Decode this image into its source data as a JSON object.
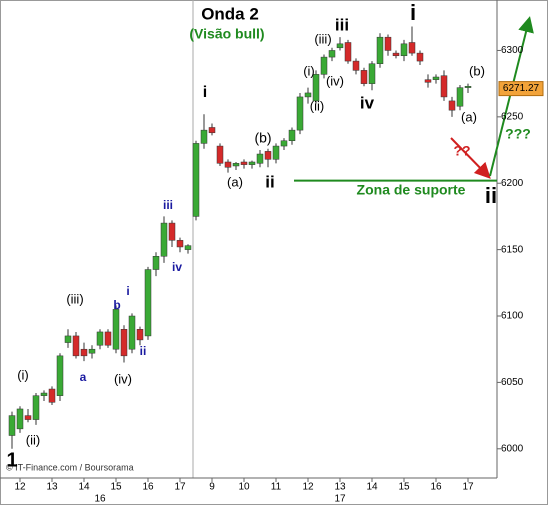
{
  "chart_data": {
    "type": "candlestick",
    "title": "Onda 2",
    "subtitle": "(Visão bull)",
    "source": "© IT-Finance.com / Boursorama",
    "categories": [
      null,
      null,
      null,
      null,
      null,
      null,
      null,
      null,
      null,
      null,
      null,
      null,
      null,
      null,
      null,
      null,
      null,
      null,
      null,
      null,
      null,
      null,
      null,
      null,
      null,
      null,
      null,
      null,
      null,
      null,
      null,
      null,
      null,
      null,
      null,
      null,
      null,
      null,
      null,
      null,
      null,
      null,
      null,
      null,
      null,
      null,
      null,
      null,
      null,
      null,
      null,
      null,
      null,
      null,
      null,
      null,
      null,
      null
    ],
    "open": [
      6010,
      6015,
      6025,
      6022,
      6040,
      6045,
      6040,
      6080,
      6085,
      6075,
      6072,
      6078,
      6088,
      6075,
      6090,
      6075,
      6090,
      6085,
      6135,
      6145,
      6170,
      6157,
      6150,
      6175,
      6230,
      6242,
      6228,
      6216,
      6213,
      6216,
      6214,
      6215,
      6224,
      6218,
      6228,
      6232,
      6240,
      6265,
      6262,
      6282,
      6295,
      6302,
      6306,
      6292,
      6285,
      6275,
      6290,
      6310,
      6298,
      6296,
      6306,
      6298,
      6278,
      6278,
      6281,
      6262,
      6258,
      6272
    ],
    "high": [
      6028,
      6032,
      6030,
      6042,
      6044,
      6047,
      6072,
      6090,
      6088,
      6080,
      6078,
      6090,
      6090,
      6108,
      6093,
      6102,
      6092,
      6137,
      6148,
      6175,
      6172,
      6159,
      6154,
      6232,
      6252,
      6245,
      6230,
      6218,
      6216,
      6218,
      6217,
      6225,
      6226,
      6230,
      6234,
      6242,
      6268,
      6272,
      6285,
      6297,
      6302,
      6310,
      6308,
      6294,
      6287,
      6292,
      6313,
      6312,
      6300,
      6308,
      6318,
      6300,
      6282,
      6282,
      6285,
      6265,
      6274,
      6275
    ],
    "low": [
      6000,
      6012,
      6020,
      6018,
      6036,
      6033,
      6036,
      6076,
      6068,
      6066,
      6068,
      6075,
      6076,
      6072,
      6065,
      6072,
      6078,
      6082,
      6130,
      6140,
      6152,
      6148,
      6147,
      6172,
      6226,
      6236,
      6213,
      6208,
      6210,
      6211,
      6211,
      6212,
      6212,
      6215,
      6225,
      6229,
      6237,
      6260,
      6260,
      6279,
      6292,
      6300,
      6290,
      6282,
      6273,
      6270,
      6287,
      6296,
      6294,
      6292,
      6296,
      6289,
      6272,
      6275,
      6262,
      6250,
      6255,
      6268
    ],
    "close": [
      6025,
      6030,
      6022,
      6040,
      6042,
      6035,
      6070,
      6085,
      6070,
      6070,
      6075,
      6088,
      6078,
      6105,
      6070,
      6100,
      6082,
      6135,
      6145,
      6170,
      6157,
      6152,
      6153,
      6230,
      6240,
      6238,
      6215,
      6212,
      6215,
      6214,
      6216,
      6222,
      6218,
      6228,
      6232,
      6240,
      6265,
      6268,
      6282,
      6295,
      6300,
      6305,
      6292,
      6285,
      6275,
      6290,
      6310,
      6300,
      6296,
      6305,
      6298,
      6292,
      6276,
      6280,
      6265,
      6255,
      6272,
      6273
    ],
    "up_color": "#3aa935",
    "down_color": "#d42a2a",
    "ylim": [
      5978,
      6338
    ],
    "yticks": [
      6000,
      6050,
      6100,
      6150,
      6200,
      6250,
      6300
    ],
    "xticks": [
      {
        "value": 1,
        "label": "12"
      },
      {
        "value": 5,
        "label": "13"
      },
      {
        "value": 9,
        "label": "14"
      },
      {
        "value": 13,
        "label": "15"
      },
      {
        "value": 17,
        "label": "16"
      },
      {
        "value": 21,
        "label": "17"
      },
      {
        "value": 25,
        "label": "9"
      },
      {
        "value": 29,
        "label": "10"
      },
      {
        "value": 33,
        "label": "11"
      },
      {
        "value": 37,
        "label": "12"
      },
      {
        "value": 41,
        "label": "13"
      },
      {
        "value": 45,
        "label": "14"
      },
      {
        "value": 49,
        "label": "15"
      },
      {
        "value": 53,
        "label": "16"
      },
      {
        "value": 57,
        "label": "17"
      }
    ],
    "day_ticks": [
      {
        "value": 11,
        "label": "16"
      },
      {
        "value": 41,
        "label": "17"
      }
    ],
    "last_price": 6271.27,
    "support": {
      "label": "Zona de suporte",
      "value": 6202,
      "color": "#1f8a1f"
    },
    "annotations": [
      {
        "text": "i",
        "color": "#000000"
      },
      {
        "text": "(b)",
        "color": "#000000"
      },
      {
        "text": "(a)",
        "color": "#000000"
      },
      {
        "text": "ii",
        "color": "#000000"
      },
      {
        "text": "(i)",
        "color": "#000000"
      },
      {
        "text": "(iii)",
        "color": "#000000"
      },
      {
        "text": "iii",
        "color": "#000000"
      },
      {
        "text": "(iv)",
        "color": "#000000"
      },
      {
        "text": "(ii)",
        "color": "#000000"
      },
      {
        "text": "iv",
        "color": "#000000"
      },
      {
        "text": "i",
        "color": "#000000"
      },
      {
        "text": "(b)",
        "color": "#000000"
      },
      {
        "text": "(a)",
        "color": "#000000"
      },
      {
        "text": "??",
        "color": "#d02020"
      },
      {
        "text": "???",
        "color": "#1f8a1f"
      },
      {
        "text": "ii",
        "color": "#000000"
      },
      {
        "text": "iii",
        "color": "#1a1aa0"
      },
      {
        "text": "iv",
        "color": "#1a1aa0"
      },
      {
        "text": "i",
        "color": "#1a1aa0"
      },
      {
        "text": "b",
        "color": "#1a1aa0"
      },
      {
        "text": "ii",
        "color": "#1a1aa0"
      },
      {
        "text": "(iii)",
        "color": "#000000"
      },
      {
        "text": "a",
        "color": "#1a1aa0"
      },
      {
        "text": "(iv)",
        "color": "#000000"
      },
      {
        "text": "(i)",
        "color": "#000000"
      },
      {
        "text": "(ii)",
        "color": "#000000"
      },
      {
        "text": "1",
        "color": "#000000"
      }
    ]
  }
}
